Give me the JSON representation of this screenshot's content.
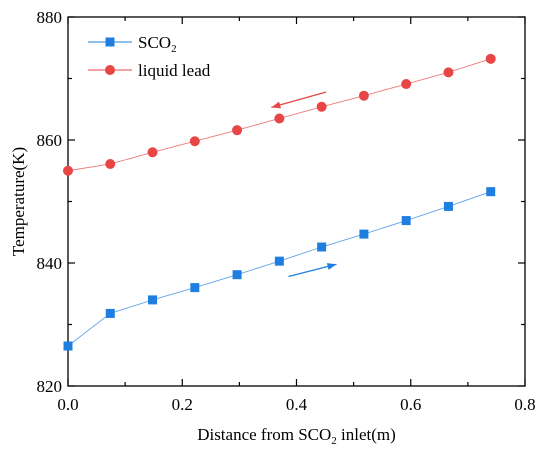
{
  "chart_data": {
    "type": "line",
    "xlabel_parts": [
      "Distance from SCO",
      "2",
      " inlet(m)"
    ],
    "ylabel": "Temperature(K)",
    "xlim": [
      0.0,
      0.8
    ],
    "ylim": [
      820,
      880
    ],
    "x_ticks": [
      0.0,
      0.2,
      0.4,
      0.6,
      0.8
    ],
    "x_tick_labels": [
      "0.0",
      "0.2",
      "0.4",
      "0.6",
      "0.8"
    ],
    "y_ticks": [
      820,
      840,
      860,
      880
    ],
    "y_tick_labels": [
      "820",
      "840",
      "860",
      "880"
    ],
    "grid": false,
    "legend_position": "top-left",
    "series": [
      {
        "name_parts": [
          "SCO",
          "2"
        ],
        "marker": "square",
        "color": "#1f7fe0",
        "x": [
          0.0,
          0.074,
          0.148,
          0.222,
          0.296,
          0.37,
          0.444,
          0.518,
          0.592,
          0.666,
          0.74
        ],
        "y": [
          826.5,
          831.8,
          834.0,
          836.0,
          838.1,
          840.3,
          842.6,
          844.7,
          846.9,
          849.2,
          851.6
        ],
        "flow_direction": "right"
      },
      {
        "name_parts": [
          "liquid lead"
        ],
        "marker": "circle",
        "color": "#e84545",
        "x": [
          0.0,
          0.074,
          0.148,
          0.222,
          0.296,
          0.37,
          0.444,
          0.518,
          0.592,
          0.666,
          0.74
        ],
        "y": [
          855.0,
          856.1,
          858.0,
          859.8,
          861.6,
          863.5,
          865.4,
          867.2,
          869.1,
          871.0,
          873.2
        ],
        "flow_direction": "left"
      }
    ]
  }
}
